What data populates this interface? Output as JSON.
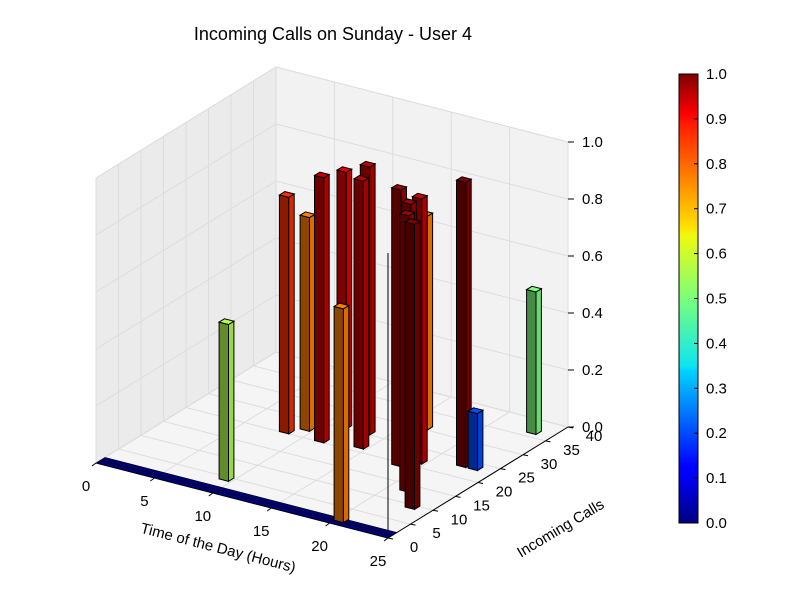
{
  "chart_data": {
    "type": "bar3d",
    "title": "Incoming Calls on Sunday - User 4",
    "xlabel": "Time of the Day (Hours)",
    "ylabel": "Incoming Calls",
    "zlabel": "",
    "x_ticks": [
      "0",
      "5",
      "10",
      "15",
      "20",
      "25"
    ],
    "y_ticks": [
      "0",
      "5",
      "10",
      "15",
      "20",
      "25",
      "30",
      "35",
      "40"
    ],
    "z_ticks": [
      "0.0",
      "0.2",
      "0.4",
      "0.6",
      "0.8",
      "1.0"
    ],
    "xlim": [
      0,
      25
    ],
    "ylim": [
      0,
      40
    ],
    "zlim": [
      0,
      1
    ],
    "colormap": "jet",
    "colorbar": {
      "range": [
        0,
        1
      ],
      "ticks": [
        "0.0",
        "0.1",
        "0.2",
        "0.3",
        "0.4",
        "0.5",
        "0.6",
        "0.7",
        "0.8",
        "0.9",
        "1.0"
      ]
    },
    "grid": true,
    "bars": [
      {
        "hour": 8,
        "calls": 20,
        "value": 0.83
      },
      {
        "hour": 9,
        "calls": 22,
        "value": 0.75
      },
      {
        "hour": 9,
        "calls": 4,
        "value": 0.55
      },
      {
        "hour": 11,
        "calls": 20,
        "value": 0.93
      },
      {
        "hour": 11,
        "calls": 25,
        "value": 0.9
      },
      {
        "hour": 13,
        "calls": 25,
        "value": 0.94
      },
      {
        "hour": 14,
        "calls": 21,
        "value": 0.94
      },
      {
        "hour": 16,
        "calls": 30,
        "value": 0.75
      },
      {
        "hour": 18,
        "calls": 19,
        "value": 0.97
      },
      {
        "hour": 19,
        "calls": 21,
        "value": 0.93
      },
      {
        "hour": 20,
        "calls": 16,
        "value": 0.97
      },
      {
        "hour": 20,
        "calls": 1,
        "value": 0.75
      },
      {
        "hour": 21,
        "calls": 13,
        "value": 0.97
      },
      {
        "hour": 22,
        "calls": 23,
        "value": 1.0
      },
      {
        "hour": 23,
        "calls": 9,
        "value": 1.0
      },
      {
        "hour": 23,
        "calls": 36,
        "value": 0.5
      },
      {
        "hour": 23,
        "calls": 23,
        "value": 0.2
      }
    ]
  }
}
